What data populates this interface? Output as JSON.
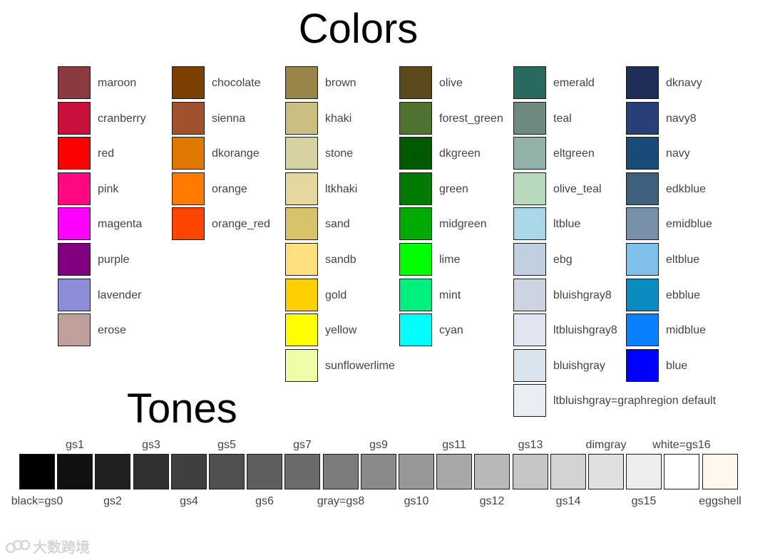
{
  "titles": {
    "colors": "Colors",
    "tones": "Tones"
  },
  "colors": [
    [
      {
        "name": "maroon",
        "hex": "#8b3a3f"
      },
      {
        "name": "cranberry",
        "hex": "#c8103a"
      },
      {
        "name": "red",
        "hex": "#ff0000"
      },
      {
        "name": "pink",
        "hex": "#ff0880"
      },
      {
        "name": "magenta",
        "hex": "#ff00ff"
      },
      {
        "name": "purple",
        "hex": "#800080"
      },
      {
        "name": "lavender",
        "hex": "#8c8cd8"
      },
      {
        "name": "erose",
        "hex": "#c0a09a"
      }
    ],
    [
      {
        "name": "chocolate",
        "hex": "#7b3f00"
      },
      {
        "name": "sienna",
        "hex": "#a0522d"
      },
      {
        "name": "dkorange",
        "hex": "#e07800"
      },
      {
        "name": "orange",
        "hex": "#ff7b00"
      },
      {
        "name": "orange_red",
        "hex": "#ff4400"
      }
    ],
    [
      {
        "name": "brown",
        "hex": "#9a8548"
      },
      {
        "name": "khaki",
        "hex": "#c8bf80"
      },
      {
        "name": "stone",
        "hex": "#d8d2a2"
      },
      {
        "name": "ltkhaki",
        "hex": "#e4d8a0"
      },
      {
        "name": "sand",
        "hex": "#d9c36a"
      },
      {
        "name": "sandb",
        "hex": "#ffe080"
      },
      {
        "name": "gold",
        "hex": "#ffd000"
      },
      {
        "name": "yellow",
        "hex": "#ffff00"
      },
      {
        "name": "sunflowerlime",
        "hex": "#eeffaa"
      }
    ],
    [
      {
        "name": "olive",
        "hex": "#5c4a1c"
      },
      {
        "name": "forest_green",
        "hex": "#507430"
      },
      {
        "name": "dkgreen",
        "hex": "#005a00"
      },
      {
        "name": "green",
        "hex": "#007a00"
      },
      {
        "name": "midgreen",
        "hex": "#00aa00"
      },
      {
        "name": "lime",
        "hex": "#00ff00"
      },
      {
        "name": "mint",
        "hex": "#00f080"
      },
      {
        "name": "cyan",
        "hex": "#00ffff"
      }
    ],
    [
      {
        "name": "emerald",
        "hex": "#2a6a60"
      },
      {
        "name": "teal",
        "hex": "#6e8a80"
      },
      {
        "name": "eltgreen",
        "hex": "#92b2aa"
      },
      {
        "name": "olive_teal",
        "hex": "#b8d8bc"
      },
      {
        "name": "ltblue",
        "hex": "#a8d8e8"
      },
      {
        "name": "ebg",
        "hex": "#c0d0e0"
      },
      {
        "name": "bluishgray8",
        "hex": "#ccd4e2"
      },
      {
        "name": "ltbluishgray8",
        "hex": "#e2e6f0"
      },
      {
        "name": "bluishgray",
        "hex": "#dae4ec"
      },
      {
        "name": "ltbluishgray=graphregion default",
        "hex": "#e8eef2"
      }
    ],
    [
      {
        "name": "dknavy",
        "hex": "#1e2c58"
      },
      {
        "name": "navy8",
        "hex": "#284078"
      },
      {
        "name": "navy",
        "hex": "#1a4a78"
      },
      {
        "name": "edkblue",
        "hex": "#3e607c"
      },
      {
        "name": "emidblue",
        "hex": "#7890aa"
      },
      {
        "name": "eltblue",
        "hex": "#82c0ec"
      },
      {
        "name": "ebblue",
        "hex": "#0a8cc0"
      },
      {
        "name": "midblue",
        "hex": "#0880ff"
      },
      {
        "name": "blue",
        "hex": "#0000ff"
      }
    ]
  ],
  "tones": [
    {
      "name": "black=gs0",
      "hex": "#000000"
    },
    {
      "name": "gs1",
      "hex": "#101010"
    },
    {
      "name": "gs2",
      "hex": "#202020"
    },
    {
      "name": "gs3",
      "hex": "#303030"
    },
    {
      "name": "gs4",
      "hex": "#404040"
    },
    {
      "name": "gs5",
      "hex": "#505050"
    },
    {
      "name": "gs6",
      "hex": "#5e5e5e"
    },
    {
      "name": "gs7",
      "hex": "#6c6c6c"
    },
    {
      "name": "gray=gs8",
      "hex": "#7c7c7c"
    },
    {
      "name": "gs9",
      "hex": "#8a8a8a"
    },
    {
      "name": "gs10",
      "hex": "#989898"
    },
    {
      "name": "gs11",
      "hex": "#a8a8a8"
    },
    {
      "name": "gs12",
      "hex": "#b8b8b8"
    },
    {
      "name": "gs13",
      "hex": "#c6c6c6"
    },
    {
      "name": "gs14",
      "hex": "#d2d2d2"
    },
    {
      "name": "dimgray",
      "hex": "#e0e0e0"
    },
    {
      "name": "gs15",
      "hex": "#eeeeee"
    },
    {
      "name": "white=gs16",
      "hex": "#ffffff"
    },
    {
      "name": "eggshell",
      "hex": "#fff8ec"
    }
  ],
  "watermark": {
    "text": "大数跨境"
  }
}
